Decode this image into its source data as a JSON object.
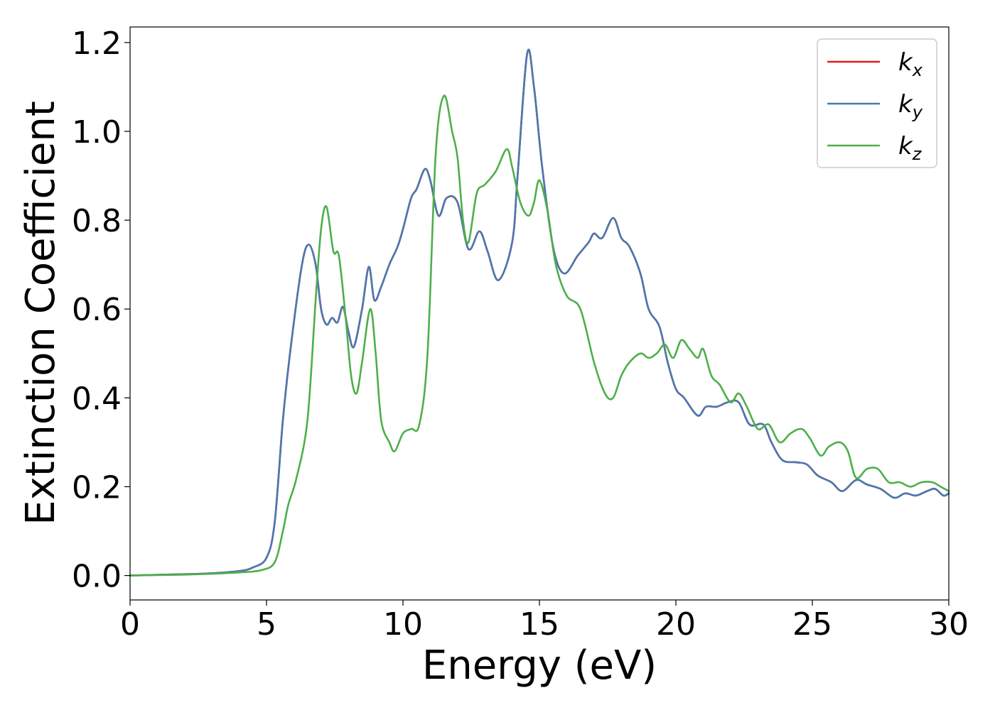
{
  "chart_data": {
    "type": "line",
    "xlabel": "Energy (eV)",
    "ylabel": "Extinction Coefficient",
    "xlim": [
      0,
      30
    ],
    "ylim": [
      -0.055,
      1.235
    ],
    "xticks": [
      "0",
      "5",
      "10",
      "15",
      "20",
      "25",
      "30"
    ],
    "yticks": [
      "0.0",
      "0.2",
      "0.4",
      "0.6",
      "0.8",
      "1.0",
      "1.2"
    ],
    "grid": false,
    "legend_position": "top-right",
    "series": [
      {
        "name": "k_x",
        "legend_base": "k",
        "legend_sub": "x",
        "color": "#e41a1c",
        "x": [
          0,
          2,
          3,
          4,
          4.5,
          5,
          5.3,
          5.6,
          5.9,
          6.3,
          6.55,
          6.8,
          7.0,
          7.2,
          7.4,
          7.6,
          7.8,
          8.0,
          8.2,
          8.5,
          8.75,
          8.95,
          9.2,
          9.5,
          9.8,
          10.0,
          10.3,
          10.5,
          10.8,
          11.0,
          11.3,
          11.6,
          12.0,
          12.4,
          12.8,
          13.1,
          13.5,
          14.0,
          14.2,
          14.55,
          14.8,
          15.1,
          15.5,
          15.9,
          16.4,
          16.8,
          17.0,
          17.3,
          17.7,
          18.0,
          18.3,
          18.7,
          19.0,
          19.4,
          19.7,
          20.0,
          20.3,
          20.8,
          21.1,
          21.5,
          21.9,
          22.3,
          22.7,
          23.2,
          23.5,
          23.9,
          24.4,
          24.8,
          25.2,
          25.7,
          26.1,
          26.6,
          27.0,
          27.5,
          28.0,
          28.4,
          28.8,
          29.2,
          29.5,
          29.8,
          30.0
        ],
        "y": [
          0.0,
          0.003,
          0.005,
          0.01,
          0.018,
          0.04,
          0.12,
          0.35,
          0.52,
          0.7,
          0.745,
          0.7,
          0.6,
          0.565,
          0.58,
          0.57,
          0.605,
          0.55,
          0.515,
          0.6,
          0.695,
          0.62,
          0.65,
          0.7,
          0.74,
          0.78,
          0.85,
          0.87,
          0.915,
          0.89,
          0.81,
          0.85,
          0.84,
          0.735,
          0.775,
          0.73,
          0.665,
          0.75,
          0.9,
          1.175,
          1.1,
          0.92,
          0.74,
          0.68,
          0.72,
          0.75,
          0.77,
          0.76,
          0.805,
          0.76,
          0.74,
          0.68,
          0.6,
          0.56,
          0.48,
          0.42,
          0.4,
          0.36,
          0.38,
          0.38,
          0.39,
          0.39,
          0.34,
          0.34,
          0.3,
          0.26,
          0.255,
          0.25,
          0.225,
          0.21,
          0.19,
          0.215,
          0.205,
          0.195,
          0.175,
          0.185,
          0.18,
          0.19,
          0.195,
          0.18,
          0.185
        ]
      },
      {
        "name": "k_y",
        "legend_base": "k",
        "legend_sub": "y",
        "color": "#4a78b0",
        "x": [
          0,
          2,
          3,
          4,
          4.5,
          5,
          5.3,
          5.6,
          5.9,
          6.3,
          6.55,
          6.8,
          7.0,
          7.2,
          7.4,
          7.6,
          7.8,
          8.0,
          8.2,
          8.5,
          8.75,
          8.95,
          9.2,
          9.5,
          9.8,
          10.0,
          10.3,
          10.5,
          10.8,
          11.0,
          11.3,
          11.6,
          12.0,
          12.4,
          12.8,
          13.1,
          13.5,
          14.0,
          14.2,
          14.55,
          14.8,
          15.1,
          15.5,
          15.9,
          16.4,
          16.8,
          17.0,
          17.3,
          17.7,
          18.0,
          18.3,
          18.7,
          19.0,
          19.4,
          19.7,
          20.0,
          20.3,
          20.8,
          21.1,
          21.5,
          21.9,
          22.3,
          22.7,
          23.2,
          23.5,
          23.9,
          24.4,
          24.8,
          25.2,
          25.7,
          26.1,
          26.6,
          27.0,
          27.5,
          28.0,
          28.4,
          28.8,
          29.2,
          29.5,
          29.8,
          30.0
        ],
        "y": [
          0.0,
          0.003,
          0.005,
          0.01,
          0.018,
          0.04,
          0.12,
          0.35,
          0.52,
          0.7,
          0.745,
          0.7,
          0.6,
          0.565,
          0.58,
          0.57,
          0.605,
          0.55,
          0.515,
          0.6,
          0.695,
          0.62,
          0.65,
          0.7,
          0.74,
          0.78,
          0.85,
          0.87,
          0.915,
          0.89,
          0.81,
          0.85,
          0.84,
          0.735,
          0.775,
          0.73,
          0.665,
          0.75,
          0.9,
          1.175,
          1.1,
          0.92,
          0.74,
          0.68,
          0.72,
          0.75,
          0.77,
          0.76,
          0.805,
          0.76,
          0.74,
          0.68,
          0.6,
          0.56,
          0.48,
          0.42,
          0.4,
          0.36,
          0.38,
          0.38,
          0.39,
          0.39,
          0.34,
          0.34,
          0.3,
          0.26,
          0.255,
          0.25,
          0.225,
          0.21,
          0.19,
          0.215,
          0.205,
          0.195,
          0.175,
          0.185,
          0.18,
          0.19,
          0.195,
          0.18,
          0.185
        ]
      },
      {
        "name": "k_z",
        "legend_base": "k",
        "legend_sub": "z",
        "color": "#4daf4a",
        "x": [
          0,
          2,
          3,
          4,
          4.8,
          5.3,
          5.6,
          5.8,
          6.1,
          6.5,
          6.8,
          7.0,
          7.2,
          7.45,
          7.65,
          7.9,
          8.1,
          8.3,
          8.5,
          8.8,
          9.0,
          9.2,
          9.5,
          9.7,
          10.0,
          10.3,
          10.6,
          10.9,
          11.2,
          11.5,
          11.8,
          12.0,
          12.2,
          12.4,
          12.7,
          13.0,
          13.4,
          13.8,
          14.0,
          14.3,
          14.6,
          14.8,
          15.0,
          15.3,
          15.6,
          16.0,
          16.5,
          17.0,
          17.4,
          17.7,
          18.0,
          18.3,
          18.7,
          19.0,
          19.3,
          19.6,
          19.9,
          20.2,
          20.5,
          20.8,
          21.0,
          21.3,
          21.6,
          22.0,
          22.3,
          22.6,
          23.0,
          23.4,
          23.8,
          24.2,
          24.6,
          24.9,
          25.3,
          25.6,
          26.0,
          26.3,
          26.6,
          27.0,
          27.4,
          27.8,
          28.2,
          28.6,
          29.0,
          29.4,
          29.7,
          30.0
        ],
        "y": [
          0.0,
          0.002,
          0.004,
          0.007,
          0.012,
          0.03,
          0.1,
          0.16,
          0.22,
          0.35,
          0.62,
          0.78,
          0.83,
          0.73,
          0.72,
          0.58,
          0.45,
          0.41,
          0.48,
          0.6,
          0.5,
          0.35,
          0.3,
          0.28,
          0.32,
          0.33,
          0.34,
          0.5,
          0.95,
          1.08,
          1.0,
          0.94,
          0.8,
          0.75,
          0.86,
          0.88,
          0.91,
          0.96,
          0.92,
          0.84,
          0.81,
          0.84,
          0.89,
          0.82,
          0.7,
          0.63,
          0.6,
          0.48,
          0.41,
          0.4,
          0.45,
          0.48,
          0.5,
          0.49,
          0.5,
          0.52,
          0.49,
          0.53,
          0.51,
          0.49,
          0.51,
          0.45,
          0.43,
          0.39,
          0.41,
          0.38,
          0.33,
          0.34,
          0.3,
          0.32,
          0.33,
          0.31,
          0.27,
          0.29,
          0.3,
          0.28,
          0.22,
          0.24,
          0.24,
          0.21,
          0.21,
          0.2,
          0.21,
          0.21,
          0.2,
          0.19
        ]
      }
    ]
  }
}
